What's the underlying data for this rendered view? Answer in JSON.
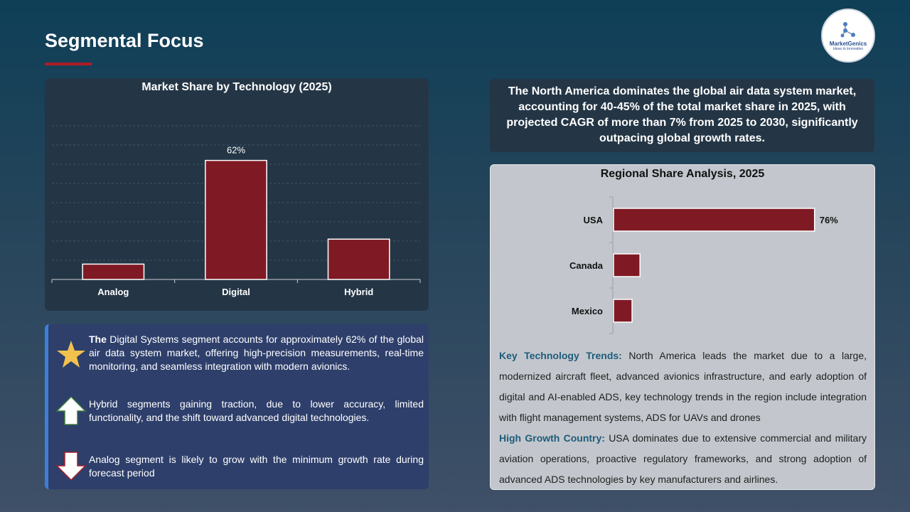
{
  "page": {
    "title": "Segmental Focus"
  },
  "logo": {
    "name": "MarketGenics",
    "tagline": "Ideas to Innovation",
    "icon": "network-icon"
  },
  "tech_chart": {
    "title": "Market Share by Technology (2025)",
    "categories": [
      "Analog",
      "Digital",
      "Hybrid"
    ],
    "value_label": "62%"
  },
  "statement": {
    "text": "The North America dominates the global air data system market, accounting for 40-45% of the total market share in 2025, with projected CAGR of more than 7% from 2025 to 2030, significantly outpacing global growth rates."
  },
  "region_chart": {
    "title": "Regional Share Analysis, 2025",
    "categories": [
      "USA",
      "Canada",
      "Mexico"
    ],
    "value_label": "76%"
  },
  "chart_data": [
    {
      "type": "bar",
      "title": "Market Share by Technology (2025)",
      "categories": [
        "Analog",
        "Digital",
        "Hybrid"
      ],
      "values": [
        8,
        62,
        21
      ],
      "data_labels": [
        "",
        "62%",
        ""
      ],
      "ylim": [
        0,
        80
      ],
      "grid": true,
      "color": "#7f1a24"
    },
    {
      "type": "bar",
      "orientation": "horizontal",
      "title": "Regional Share Analysis, 2025",
      "categories": [
        "USA",
        "Canada",
        "Mexico"
      ],
      "values": [
        76,
        10,
        7
      ],
      "data_labels": [
        "76%",
        "",
        ""
      ],
      "xlim": [
        0,
        100
      ],
      "grid": false,
      "color": "#7f1a24"
    }
  ],
  "bullets": [
    {
      "icon": "star-icon",
      "lead": "The",
      "text": " Digital Systems segment accounts for approximately 62% of the global air data system market, offering high-precision measurements, real-time monitoring, and seamless integration with modern avionics."
    },
    {
      "icon": "arrow-up-icon",
      "lead": "",
      "text": "Hybrid segments gaining traction, due to lower accuracy, limited functionality, and the shift toward advanced digital technologies."
    },
    {
      "icon": "arrow-down-icon",
      "lead": "",
      "text": "Analog segment is likely to grow with the minimum growth rate during forecast period"
    }
  ],
  "trends": {
    "tech_label": "Key Technology Trends:",
    "tech_text": " North America leads the market due to a large, modernized aircraft fleet, advanced avionics infrastructure, and early adoption of digital and AI-enabled ADS, key technology trends in the region include integration with flight management systems,  ADS for UAVs and drones",
    "growth_label": "High Growth Country:",
    "growth_text": " USA dominates due to extensive commercial and military aviation operations, proactive regulatory frameworks, and strong adoption of advanced ADS technologies by key manufacturers and airlines."
  },
  "colors": {
    "bar": "#7f1a24",
    "accent": "#b01c24",
    "label": "#1e5c7a",
    "star": "#f2c14e"
  }
}
